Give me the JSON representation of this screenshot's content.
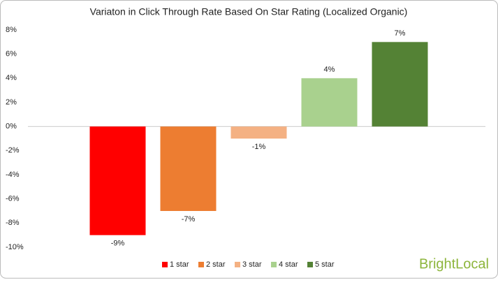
{
  "chart_data": {
    "type": "bar",
    "title": "Variaton in Click Through Rate Based On Star Rating  (Localized Organic)",
    "categories": [
      null
    ],
    "series": [
      {
        "name": "1 star",
        "color": "#ff0000",
        "values": [
          -9
        ],
        "value_labels": [
          "-9%"
        ]
      },
      {
        "name": "2 star",
        "color": "#ed7d31",
        "values": [
          -7
        ],
        "value_labels": [
          "-7%"
        ]
      },
      {
        "name": "3 star",
        "color": "#f4b183",
        "values": [
          -1
        ],
        "value_labels": [
          "-1%"
        ]
      },
      {
        "name": "4 star",
        "color": "#a9d18e",
        "values": [
          4
        ],
        "value_labels": [
          "4%"
        ]
      },
      {
        "name": "5 star",
        "color": "#548235",
        "values": [
          7
        ],
        "value_labels": [
          "7%"
        ]
      }
    ],
    "ylim": [
      -10,
      8
    ],
    "yticks": [
      {
        "value": -10,
        "label": "-10%"
      },
      {
        "value": -8,
        "label": "-8%"
      },
      {
        "value": -6,
        "label": "-6%"
      },
      {
        "value": -4,
        "label": "-4%"
      },
      {
        "value": -2,
        "label": "-2%"
      },
      {
        "value": 0,
        "label": "0%"
      },
      {
        "value": 2,
        "label": "2%"
      },
      {
        "value": 4,
        "label": "4%"
      },
      {
        "value": 6,
        "label": "6%"
      },
      {
        "value": 8,
        "label": "8%"
      }
    ],
    "grid": false,
    "legend": "bottom"
  },
  "watermark": "BrightLocal"
}
